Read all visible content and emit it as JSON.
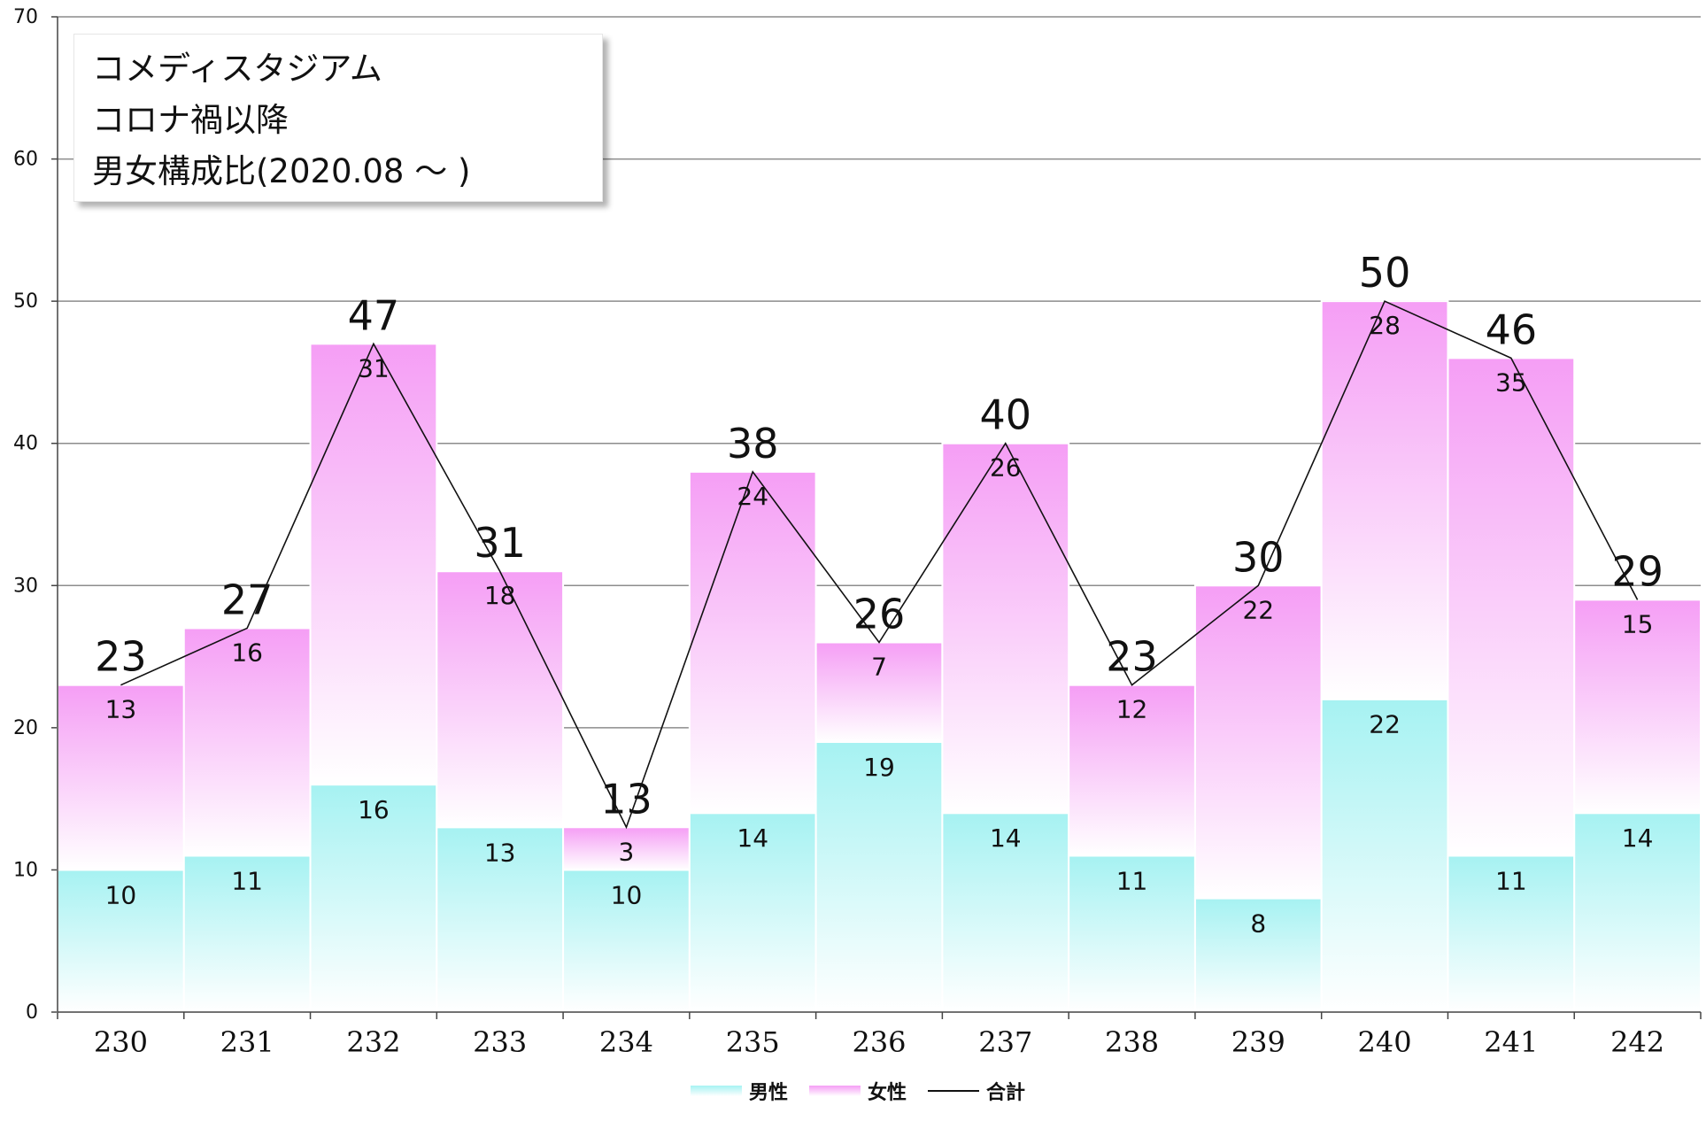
{
  "chart_data": {
    "type": "bar",
    "stacked": true,
    "categories": [
      "230",
      "231",
      "232",
      "233",
      "234",
      "235",
      "236",
      "237",
      "238",
      "239",
      "240",
      "241",
      "242"
    ],
    "series": [
      {
        "name": "男性",
        "values": [
          10,
          11,
          16,
          13,
          10,
          14,
          19,
          14,
          11,
          8,
          22,
          11,
          14
        ],
        "color": "#a6f2f2"
      },
      {
        "name": "女性",
        "values": [
          13,
          16,
          31,
          18,
          3,
          24,
          7,
          26,
          12,
          22,
          28,
          35,
          15
        ],
        "color": "#f59ef5"
      }
    ],
    "line_series": {
      "name": "合計",
      "values": [
        23,
        27,
        47,
        31,
        13,
        38,
        26,
        40,
        23,
        30,
        50,
        46,
        29
      ],
      "color": "#111111"
    },
    "title_lines": [
      "コメディスタジアム",
      "コロナ禍以降",
      "男女構成比(2020.08 ～ )"
    ],
    "ylim": [
      0,
      70
    ],
    "yticks": [
      0,
      10,
      20,
      30,
      40,
      50,
      60,
      70
    ],
    "grid": true,
    "legend": "bottom"
  }
}
